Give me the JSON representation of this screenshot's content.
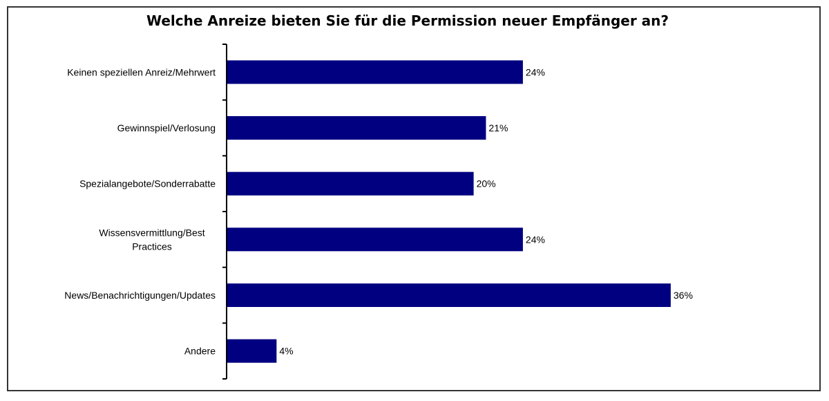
{
  "chart_data": {
    "type": "bar",
    "orientation": "horizontal",
    "title": "Welche Anreize bieten Sie für die Permission neuer Empfänger an?",
    "categories": [
      "Keinen speziellen Anreiz/Mehrwert",
      "Gewinnspiel/Verlosung",
      "Spezialangebote/Sonderrabatte",
      "Wissensvermittlung/Best Practices",
      "News/Benachrichtigungen/Updates",
      "Andere"
    ],
    "category_lines": [
      [
        "Keinen speziellen Anreiz/Mehrwert"
      ],
      [
        "Gewinnspiel/Verlosung"
      ],
      [
        "Spezialangebote/Sonderrabatte"
      ],
      [
        "Wissensvermittlung/Best",
        "Practices"
      ],
      [
        "News/Benachrichtigungen/Updates"
      ],
      [
        "Andere"
      ]
    ],
    "values": [
      24,
      21,
      20,
      24,
      36,
      4
    ],
    "data_labels": [
      "24%",
      "21%",
      "20%",
      "24%",
      "36%",
      "4%"
    ],
    "xlabel": "",
    "ylabel": "",
    "unit": "%",
    "grid": false,
    "legend": "none",
    "bar_color": "#000080"
  }
}
